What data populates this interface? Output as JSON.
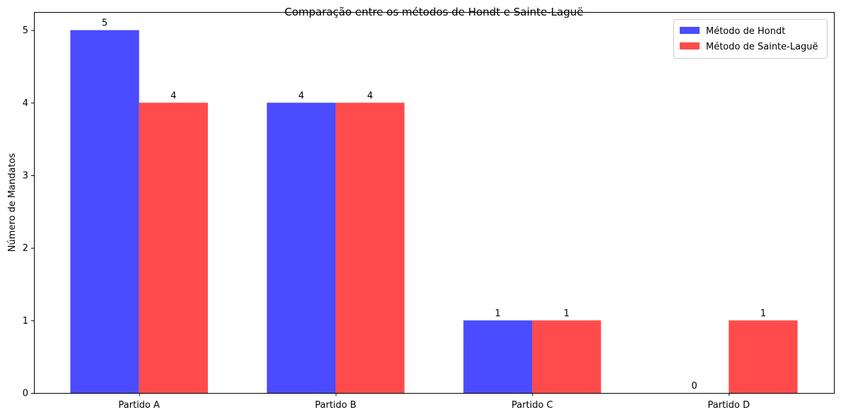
{
  "chart_data": {
    "type": "bar",
    "title": "Comparação entre os métodos de Hondt e Sainte-Laguë",
    "xlabel": "",
    "ylabel": "Número de Mandatos",
    "categories": [
      "Partido A",
      "Partido B",
      "Partido C",
      "Partido D"
    ],
    "series": [
      {
        "name": "Método de Hondt",
        "values": [
          5,
          4,
          1,
          0
        ],
        "color": "#4b4bff"
      },
      {
        "name": "Método de Sainte-Laguë",
        "values": [
          4,
          4,
          1,
          1
        ],
        "color": "#ff4b4b"
      }
    ],
    "ylim": [
      0,
      5.25
    ],
    "yticks": [
      "0",
      "1",
      "2",
      "3",
      "4",
      "5"
    ],
    "data_labels": true,
    "grid": false,
    "legend_position": "top-right"
  }
}
